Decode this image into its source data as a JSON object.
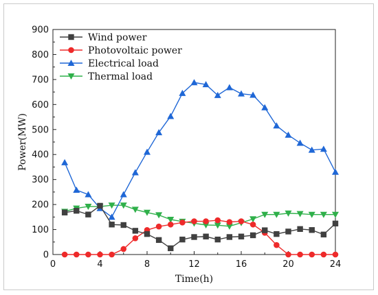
{
  "chart_data": {
    "type": "line",
    "xlabel": "Time(h)",
    "ylabel": "Power(MW)",
    "xlim": [
      0,
      24
    ],
    "ylim": [
      0,
      900
    ],
    "x_ticks": [
      0,
      4,
      8,
      12,
      16,
      20,
      24
    ],
    "y_ticks": [
      0,
      100,
      200,
      300,
      400,
      500,
      600,
      700,
      800,
      900
    ],
    "grid": false,
    "legend_position": "top-left",
    "x": [
      1,
      2,
      3,
      4,
      5,
      6,
      7,
      8,
      9,
      10,
      11,
      12,
      13,
      14,
      15,
      16,
      17,
      18,
      19,
      20,
      21,
      22,
      23,
      24
    ],
    "series": [
      {
        "name": "Wind power",
        "color": "#404040",
        "marker": "square",
        "values": [
          168,
          175,
          160,
          195,
          120,
          118,
          95,
          82,
          58,
          25,
          60,
          70,
          72,
          60,
          70,
          72,
          77,
          97,
          82,
          92,
          102,
          98,
          80,
          124
        ]
      },
      {
        "name": "Photovoltaic power",
        "color": "#ee2a2a",
        "marker": "circle",
        "values": [
          0,
          0,
          0,
          0,
          0,
          22,
          65,
          98,
          112,
          120,
          128,
          133,
          133,
          137,
          130,
          133,
          120,
          87,
          38,
          0,
          0,
          0,
          0,
          0
        ]
      },
      {
        "name": "Electrical load",
        "color": "#1f67d6",
        "marker": "triangle-up",
        "values": [
          368,
          258,
          240,
          185,
          150,
          240,
          328,
          410,
          488,
          553,
          645,
          688,
          680,
          637,
          668,
          643,
          638,
          588,
          515,
          478,
          446,
          418,
          422,
          330
        ]
      },
      {
        "name": "Thermal load",
        "color": "#2fb04a",
        "marker": "triangle-down",
        "values": [
          172,
          185,
          192,
          192,
          197,
          197,
          180,
          168,
          158,
          140,
          132,
          125,
          118,
          117,
          113,
          127,
          142,
          160,
          160,
          165,
          163,
          160,
          160,
          160
        ]
      }
    ]
  }
}
